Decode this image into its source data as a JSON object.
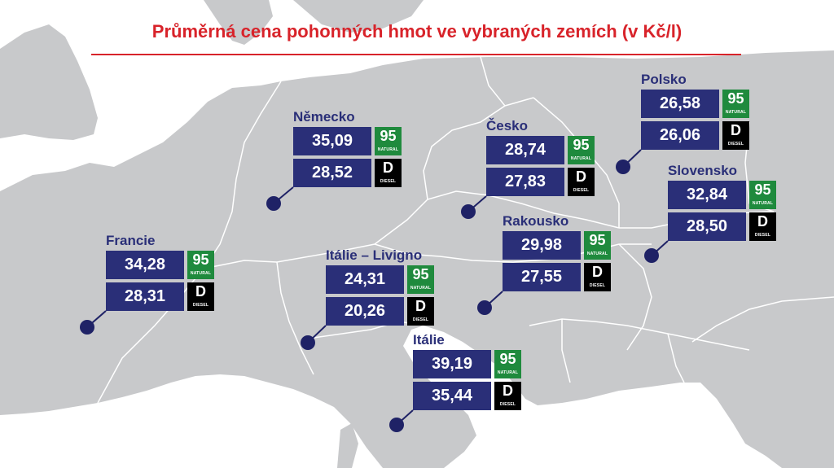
{
  "title": "Průměrná cena pohonných hmot ve vybraných zemích (v Kč/l)",
  "colors": {
    "title": "#d8232a",
    "price_box": "#2a2f78",
    "natural_badge": "#1f8a3d",
    "diesel_badge": "#000000",
    "land": "#c8c9cb",
    "borders": "#ffffff",
    "marker": "#1f2266"
  },
  "badges": {
    "natural_label": "95",
    "natural_sub": "NATURAL",
    "diesel_label": "D",
    "diesel_sub": "DIESEL"
  },
  "countries": [
    {
      "id": "nemecko",
      "name": "Německo",
      "natural": "35,09",
      "diesel": "28,52"
    },
    {
      "id": "cesko",
      "name": "Česko",
      "natural": "28,74",
      "diesel": "27,83"
    },
    {
      "id": "polsko",
      "name": "Polsko",
      "natural": "26,58",
      "diesel": "26,06"
    },
    {
      "id": "slovensko",
      "name": "Slovensko",
      "natural": "32,84",
      "diesel": "28,50"
    },
    {
      "id": "francie",
      "name": "Francie",
      "natural": "34,28",
      "diesel": "28,31"
    },
    {
      "id": "italie-livigno",
      "name": "Itálie – Livigno",
      "natural": "24,31",
      "diesel": "20,26"
    },
    {
      "id": "rakousko",
      "name": "Rakousko",
      "natural": "29,98",
      "diesel": "27,55"
    },
    {
      "id": "italie",
      "name": "Itálie",
      "natural": "39,19",
      "diesel": "35,44"
    }
  ]
}
